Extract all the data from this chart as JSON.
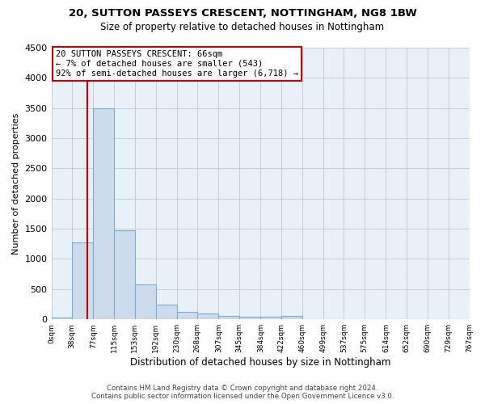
{
  "title1": "20, SUTTON PASSEYS CRESCENT, NOTTINGHAM, NG8 1BW",
  "title2": "Size of property relative to detached houses in Nottingham",
  "xlabel": "Distribution of detached houses by size in Nottingham",
  "ylabel": "Number of detached properties",
  "bin_edges": [
    0,
    38,
    77,
    115,
    153,
    192,
    230,
    268,
    307,
    345,
    384,
    422,
    460,
    499,
    537,
    575,
    614,
    652,
    690,
    729,
    767
  ],
  "bar_heights": [
    30,
    1280,
    3500,
    1480,
    580,
    240,
    120,
    90,
    60,
    40,
    40,
    60,
    0,
    0,
    0,
    0,
    0,
    0,
    0,
    0
  ],
  "bar_color": "#cddcec",
  "bar_edgecolor": "#7bacd4",
  "grid_color": "#cccccc",
  "bg_color": "#e8f0f8",
  "property_size": 66,
  "vline_color": "#cc0000",
  "annotation_line1": "20 SUTTON PASSEYS CRESCENT: 66sqm",
  "annotation_line2": "← 7% of detached houses are smaller (543)",
  "annotation_line3": "92% of semi-detached houses are larger (6,718) →",
  "annotation_box_color": "#cc0000",
  "footer1": "Contains HM Land Registry data © Crown copyright and database right 2024.",
  "footer2": "Contains public sector information licensed under the Open Government Licence v3.0.",
  "ylim": [
    0,
    4500
  ],
  "yticks": [
    0,
    500,
    1000,
    1500,
    2000,
    2500,
    3000,
    3500,
    4000,
    4500
  ]
}
